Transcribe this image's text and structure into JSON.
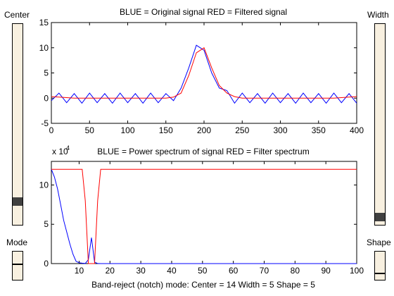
{
  "controls": {
    "center_label": "Center",
    "width_label": "Width",
    "mode_label": "Mode",
    "shape_label": "Shape",
    "center_level": 0.1,
    "width_level": 0.02
  },
  "status": "Band-reject (notch) mode:   Center = 14    Width = 5     Shape =  5",
  "colors": {
    "signal": "#0000ff",
    "filter": "#ff0000",
    "slider_bg": "#f8f0e0",
    "thumb": "#404040"
  },
  "chart_data": [
    {
      "type": "line",
      "title": "BLUE = Original signal          RED = Filtered signal",
      "xlim": [
        0,
        400
      ],
      "ylim": [
        -5,
        15
      ],
      "x_ticks": [
        "0",
        "50",
        "100",
        "150",
        "200",
        "250",
        "300",
        "350",
        "400"
      ],
      "y_ticks": [
        "15",
        "10",
        "5",
        "0",
        "-5"
      ],
      "series": [
        {
          "color": "#0000ff",
          "x": [
            0,
            10,
            20,
            30,
            40,
            50,
            60,
            70,
            80,
            90,
            100,
            110,
            120,
            130,
            140,
            150,
            160,
            170,
            180,
            190,
            200,
            210,
            220,
            230,
            240,
            250,
            260,
            270,
            280,
            290,
            300,
            310,
            320,
            330,
            340,
            350,
            360,
            370,
            380,
            390,
            400
          ],
          "y": [
            -0.5,
            1,
            -0.9,
            0.9,
            -1,
            1,
            -0.9,
            0.9,
            -1,
            1,
            -0.9,
            0.9,
            -1,
            1,
            -0.9,
            0.9,
            -0.5,
            2,
            6,
            10.5,
            9.5,
            5,
            2,
            1.5,
            -1,
            1,
            -0.9,
            0.9,
            -1,
            1,
            -0.9,
            0.9,
            -1,
            1,
            -0.9,
            0.9,
            -1,
            1,
            -0.9,
            0.9,
            -1
          ]
        },
        {
          "color": "#ff0000",
          "x": [
            0,
            10,
            20,
            30,
            40,
            50,
            60,
            70,
            80,
            90,
            100,
            110,
            120,
            130,
            140,
            150,
            160,
            170,
            180,
            190,
            200,
            210,
            220,
            230,
            240,
            250,
            260,
            270,
            280,
            290,
            300,
            310,
            320,
            330,
            340,
            350,
            360,
            370,
            380,
            390,
            400
          ],
          "y": [
            0.3,
            0.2,
            0.1,
            0,
            0,
            0,
            0,
            0,
            0,
            0,
            0,
            0,
            0,
            0,
            0,
            0,
            0.2,
            1,
            4.5,
            9,
            10,
            6,
            2.5,
            1,
            0.3,
            0,
            0,
            0,
            0,
            0,
            0,
            0,
            0,
            0,
            0,
            0,
            0,
            0,
            0.1,
            0.2,
            0.3
          ]
        }
      ]
    },
    {
      "type": "line",
      "title": "BLUE = Power spectrum of signal      RED = Filter spectrum",
      "y_multiplier": "x 10",
      "y_exponent": "4",
      "xlim": [
        1,
        100
      ],
      "ylim": [
        0,
        130000
      ],
      "x_ticks": [
        "10",
        "20",
        "30",
        "40",
        "50",
        "60",
        "70",
        "80",
        "90",
        "100"
      ],
      "y_ticks": [
        "10",
        "5",
        "0"
      ],
      "series": [
        {
          "color": "#0000ff",
          "x": [
            1,
            2,
            3,
            4,
            5,
            6,
            7,
            8,
            9,
            10,
            11,
            12,
            13,
            14,
            15,
            16,
            17,
            18,
            20,
            100
          ],
          "y": [
            120000,
            110000,
            95000,
            75000,
            55000,
            40000,
            25000,
            12000,
            3000,
            1000,
            500,
            200,
            5000,
            33000,
            2000,
            100,
            0,
            0,
            0,
            0
          ]
        },
        {
          "color": "#ff0000",
          "x": [
            1,
            9,
            11,
            12,
            13,
            14,
            15,
            16,
            17,
            18,
            20,
            100
          ],
          "y": [
            120000,
            120000,
            120000,
            80000,
            0,
            0,
            0,
            80000,
            120000,
            120000,
            120000,
            120000
          ]
        }
      ]
    }
  ]
}
